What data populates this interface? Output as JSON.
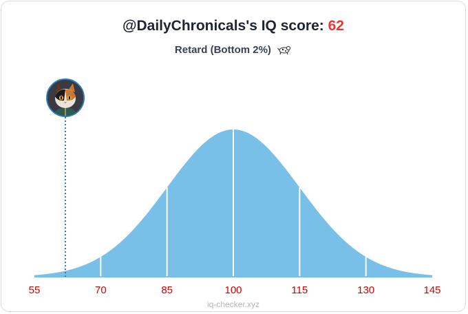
{
  "header": {
    "title_prefix": "@DailyChronicals's IQ score:",
    "score": "62",
    "subtitle": "Retard (Bottom 2%)",
    "subtitle_icon": "dog-icon"
  },
  "avatar": {
    "icon": "cat-avatar"
  },
  "watermark": "iq-checker.xyz",
  "colors": {
    "curve_fill": "#79c0e8",
    "tick_label": "#d10000",
    "score": "#e53935",
    "marker_line": "#2a7fb8"
  },
  "chart_data": {
    "type": "area",
    "distribution": "normal",
    "mean": 100,
    "sd": 15,
    "xlim": [
      55,
      145
    ],
    "x_ticks": [
      55,
      70,
      85,
      100,
      115,
      130,
      145
    ],
    "x_tick_labels": [
      "55",
      "70",
      "85",
      "100",
      "115",
      "130",
      "145"
    ],
    "sd_lines": [
      70,
      85,
      100,
      115,
      130
    ],
    "marker": {
      "value": 62
    },
    "title": "@DailyChronicals's IQ score: 62",
    "subtitle": "Retard (Bottom 2%)",
    "grid": false,
    "legend": "none"
  }
}
